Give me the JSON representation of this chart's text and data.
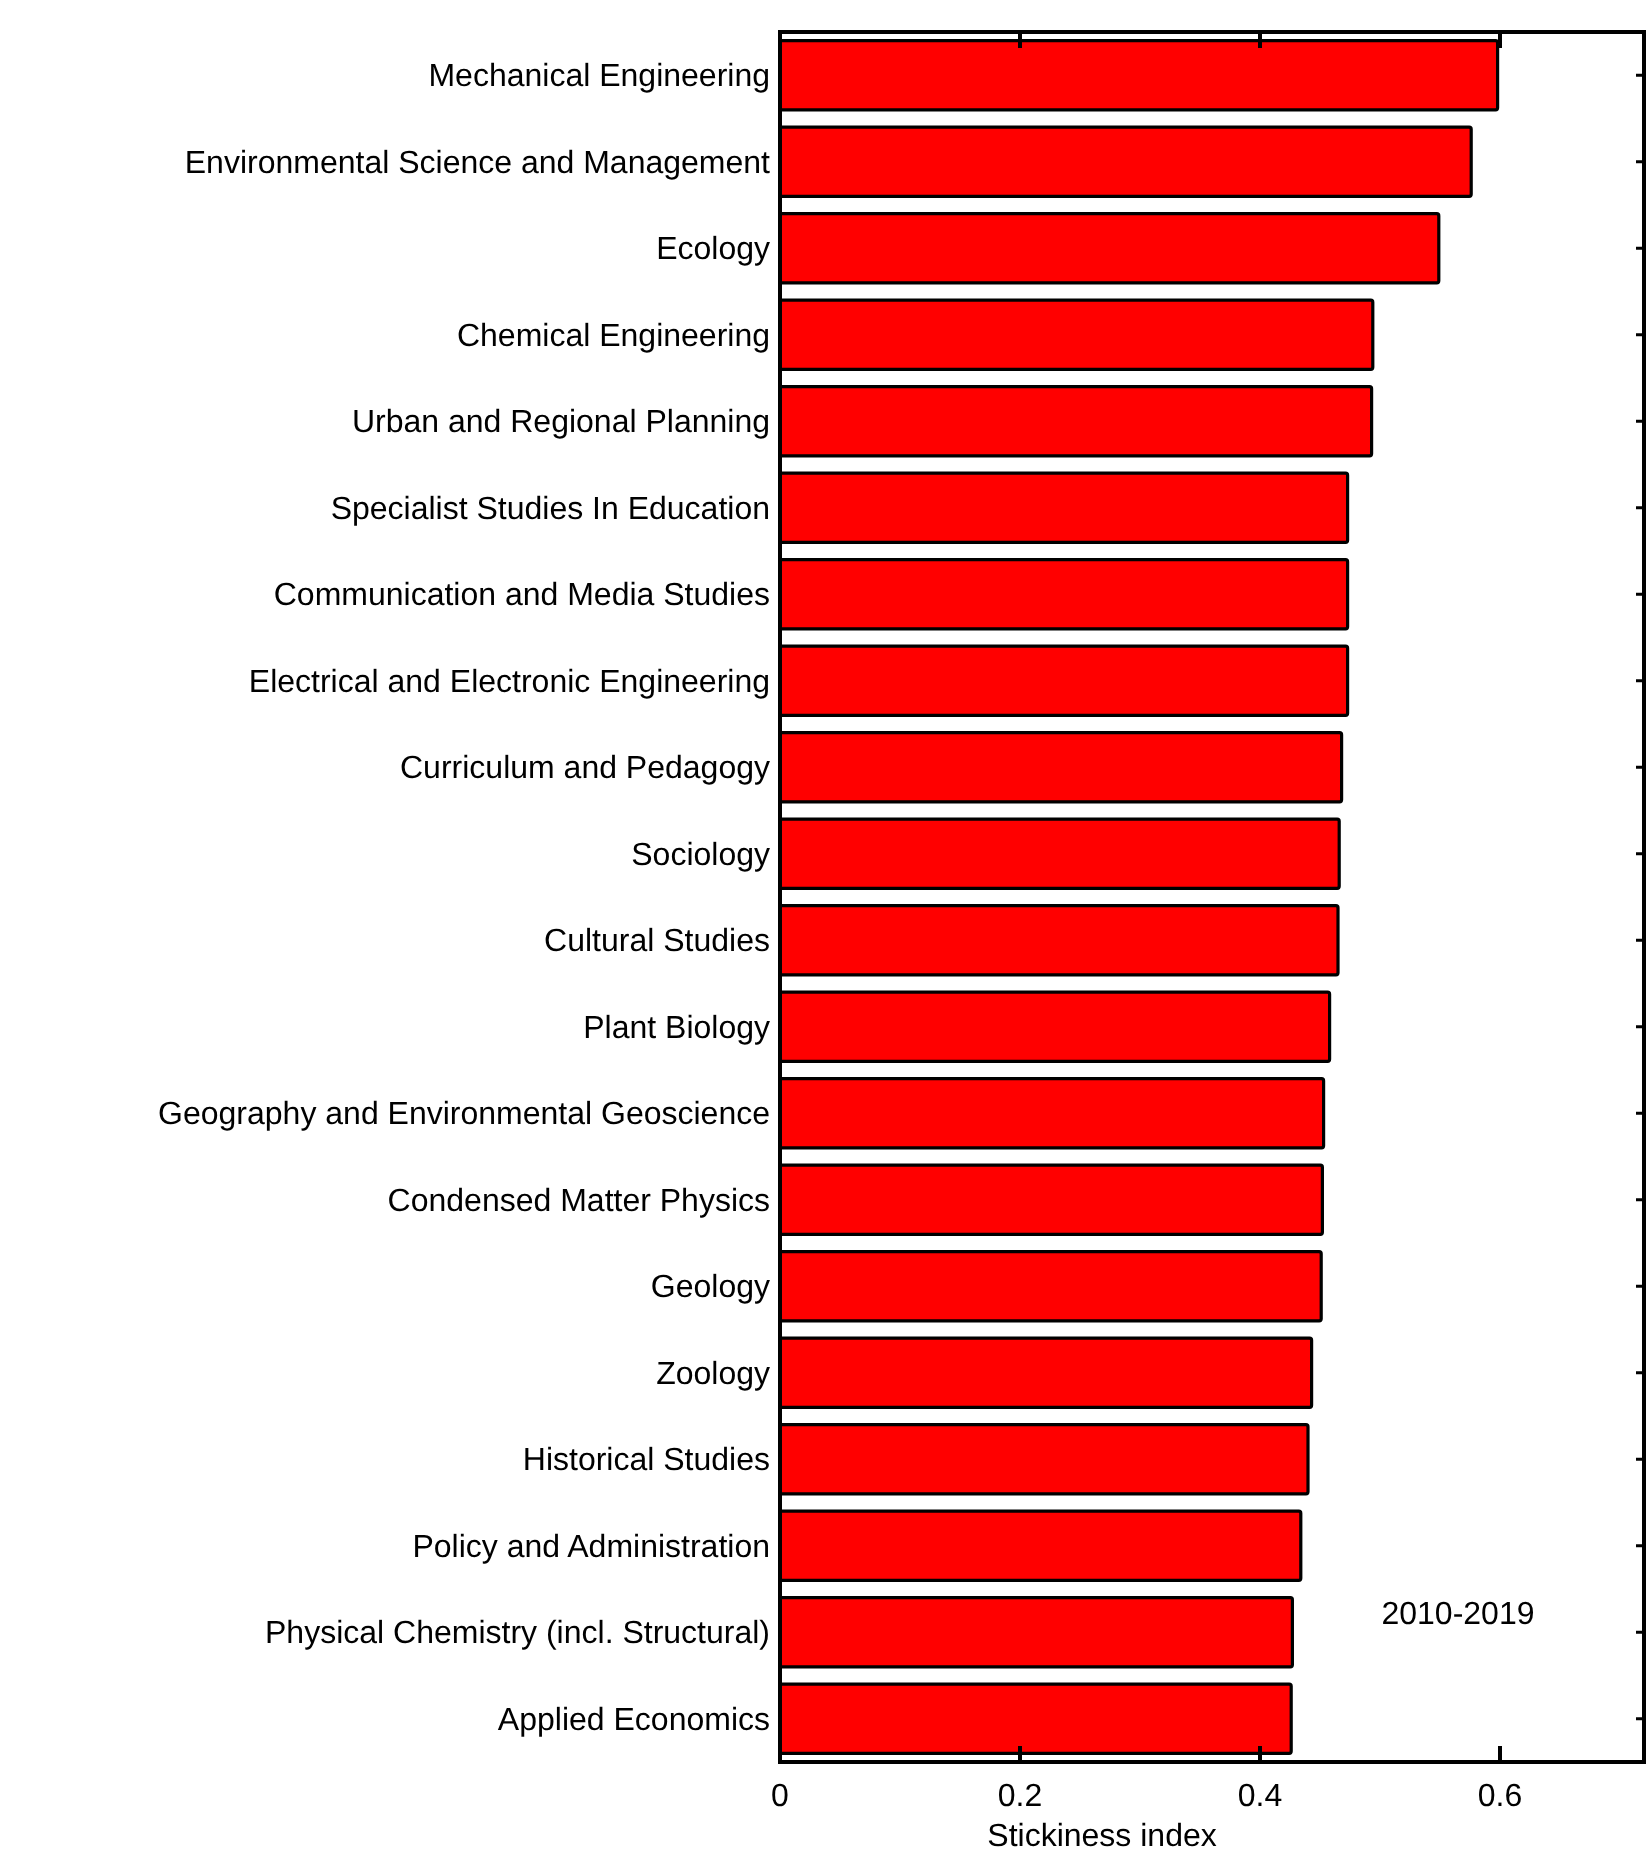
{
  "chart_data": {
    "type": "bar",
    "orientation": "horizontal",
    "xlabel": "Stickiness index",
    "categories": [
      "Mechanical Engineering",
      "Environmental Science and Management",
      "Ecology",
      "Chemical Engineering",
      "Urban and Regional Planning",
      "Specialist Studies In Education",
      "Communication and Media Studies",
      "Electrical and Electronic Engineering",
      "Curriculum and Pedagogy",
      "Sociology",
      "Cultural Studies",
      "Plant Biology",
      "Geography and Environmental Geoscience",
      "Condensed Matter Physics",
      "Geology",
      "Zoology",
      "Historical Studies",
      "Policy and Administration",
      "Physical Chemistry (incl. Structural)",
      "Applied Economics"
    ],
    "values": [
      0.598,
      0.576,
      0.549,
      0.494,
      0.493,
      0.473,
      0.473,
      0.473,
      0.468,
      0.466,
      0.465,
      0.458,
      0.453,
      0.452,
      0.451,
      0.443,
      0.44,
      0.434,
      0.427,
      0.426
    ],
    "color": "#ff0000",
    "xlim": [
      0,
      0.72
    ],
    "xticks": [
      0,
      0.2,
      0.4,
      0.6
    ],
    "annotations": [
      "2010-2019"
    ],
    "grid": false
  }
}
